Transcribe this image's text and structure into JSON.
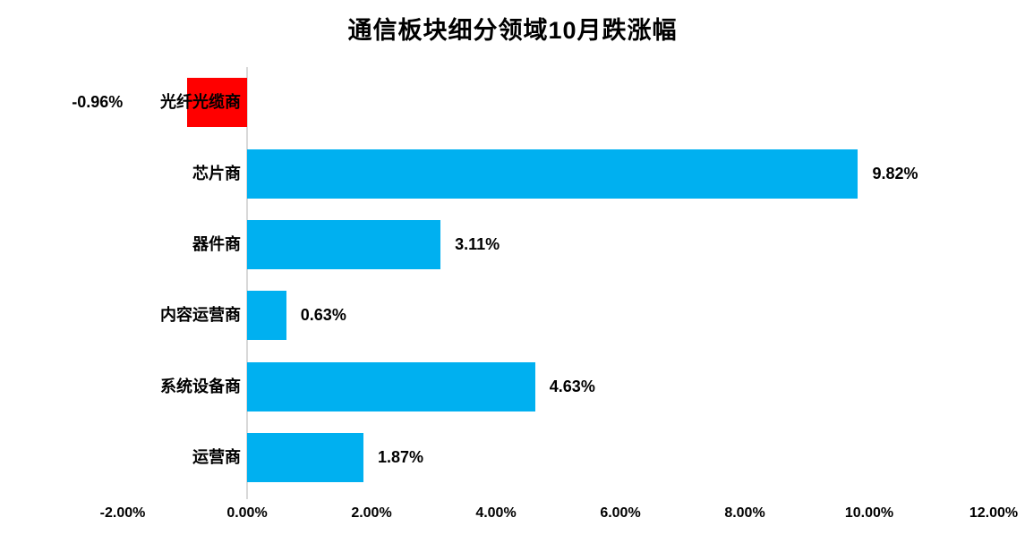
{
  "chart_data": {
    "type": "bar",
    "orientation": "horizontal",
    "title": "通信板块细分领域10月跌涨幅",
    "categories": [
      "光纤光缆商",
      "芯片商",
      "器件商",
      "内容运营商",
      "系统设备商",
      "运营商"
    ],
    "values": [
      -0.96,
      9.82,
      3.11,
      0.63,
      4.63,
      1.87
    ],
    "data_labels": [
      "-0.96%",
      "9.82%",
      "3.11%",
      "0.63%",
      "4.63%",
      "1.87%"
    ],
    "x_tick_labels": [
      "-2.00%",
      "0.00%",
      "2.00%",
      "4.00%",
      "6.00%",
      "8.00%",
      "10.00%",
      "12.00%"
    ],
    "x_tick_values": [
      -2,
      0,
      2,
      4,
      6,
      8,
      10,
      12
    ],
    "xlim": [
      -2,
      12
    ],
    "xlabel": "",
    "ylabel": "",
    "grid": false,
    "legend": "none",
    "colors": {
      "positive_bar": "#00B0F0",
      "negative_bar": "#FF0000",
      "axis_line": "#D9D9D9",
      "text": "#000000",
      "background": "#FFFFFF"
    }
  }
}
